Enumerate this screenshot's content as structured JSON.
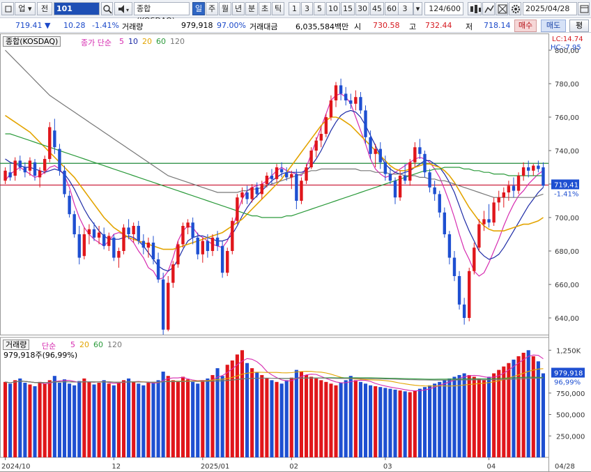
{
  "toolbar": {
    "market": "업",
    "period_label": "전",
    "code": "101",
    "name": "종합(KOSDAQ)",
    "periods": [
      "일",
      "주",
      "월",
      "년",
      "분",
      "초",
      "틱"
    ],
    "selected_period": "일",
    "intervals": [
      "1",
      "3",
      "5",
      "10",
      "15",
      "30",
      "45",
      "60"
    ],
    "custom_interval": "3",
    "count": "124",
    "count_max": "/600",
    "date": "2025/04/28"
  },
  "info": {
    "price": "719.41",
    "change_arrow": "▼",
    "change": "10.28",
    "change_pct": "-1.41%",
    "volume_label": "거래량",
    "volume": "979,918",
    "volume_ratio": "97.00%",
    "amount_label": "거래대금",
    "amount": "6,035,584백만",
    "open_label": "시",
    "open": "730.58",
    "high_label": "고",
    "high": "732.44",
    "low_label": "저",
    "low": "718.14",
    "buy_label": "매수",
    "sell_label": "매도",
    "eval_label": "평"
  },
  "price_panel": {
    "legend_name": "종합(KOSDAQ)",
    "legend_ma": "종가 단순",
    "ma_periods": [
      "5",
      "10",
      "20",
      "60",
      "120"
    ],
    "lc": "LC:14.74",
    "hc": "HC:-7.95",
    "y_ticks": [
      "800,00",
      "780,00",
      "760,00",
      "740,00",
      "720,00",
      "700,00",
      "680,00",
      "660,00",
      "640,00"
    ],
    "current_label": "719,41",
    "current_pct": "-1.41%"
  },
  "volume_panel": {
    "legend_name": "거래량",
    "legend_ma": "단순",
    "ma_periods": [
      "5",
      "20",
      "60",
      "120"
    ],
    "current_text": "979,918주(96,99%)",
    "y_ticks": [
      "1,250K",
      "750,000",
      "500,000",
      "250,000"
    ],
    "current_label": "979,918",
    "current_pct": "96,99%"
  },
  "x_axis": {
    "labels": [
      "2024/10",
      "12",
      "2025/01",
      "02",
      "03",
      "04"
    ],
    "end_label": "04/28"
  },
  "colors": {
    "up": "#e0161b",
    "down": "#1e4fd1",
    "ma5": "#d62bb0",
    "ma10": "#1d2ba6",
    "ma20": "#e3a400",
    "ma60": "#2a9a3a",
    "ma120": "#777777",
    "hline_green": "#1f8a3a",
    "hline_red": "#c8102e"
  },
  "chart_data": {
    "type": "candlestick",
    "x_range": [
      "2024/10",
      "2025/04/28"
    ],
    "ylim": [
      630,
      805
    ],
    "volume_ylim": [
      0,
      1350000
    ],
    "reference_lines": [
      732.4,
      719.4
    ],
    "series": [
      {
        "name": "5",
        "values": [
          722,
          726,
          728,
          730,
          728,
          726,
          724,
          725,
          727,
          730,
          731,
          729,
          725,
          718,
          708,
          700,
          694,
          690,
          687,
          685,
          683,
          686,
          690,
          691,
          690,
          688,
          685,
          680,
          676,
          670,
          668,
          663,
          664,
          668,
          676,
          686,
          692,
          695,
          694,
          690,
          688,
          686,
          684,
          683,
          682,
          686,
          693,
          703,
          711,
          716,
          718,
          719,
          720,
          722,
          725,
          728,
          730,
          728,
          727,
          726,
          725,
          730,
          738,
          746,
          754,
          762,
          770,
          773,
          774,
          772,
          768,
          760,
          752,
          744,
          735,
          729,
          726,
          724,
          725,
          727,
          729,
          731,
          733,
          735,
          736,
          735,
          733,
          729,
          724,
          717,
          709,
          700,
          690,
          681,
          675,
          668,
          665,
          667,
          673,
          680,
          687,
          695,
          702,
          708,
          713,
          716,
          720,
          723,
          726,
          728
        ]
      },
      {
        "name": "10",
        "values": [
          735,
          733,
          732,
          731,
          730,
          730,
          729,
          728,
          727,
          728,
          729,
          728,
          726,
          722,
          717,
          711,
          705,
          700,
          696,
          692,
          689,
          687,
          687,
          687,
          688,
          689,
          688,
          686,
          683,
          679,
          675,
          671,
          669,
          668,
          670,
          675,
          681,
          686,
          688,
          689,
          689,
          688,
          687,
          686,
          686,
          687,
          690,
          695,
          701,
          706,
          710,
          713,
          716,
          719,
          722,
          724,
          726,
          727,
          727,
          727,
          727,
          728,
          731,
          735,
          740,
          746,
          752,
          757,
          761,
          763,
          764,
          763,
          760,
          755,
          749,
          743,
          737,
          732,
          729,
          727,
          726,
          727,
          728,
          730,
          732,
          734,
          734,
          732,
          730,
          726,
          721,
          715,
          707,
          699,
          692,
          686,
          680,
          677,
          675,
          676,
          678,
          682,
          687,
          692,
          697,
          702,
          707,
          711,
          715,
          718
        ]
      },
      {
        "name": "20",
        "values": [
          761,
          759,
          757,
          755,
          753,
          751,
          748,
          745,
          742,
          739,
          736,
          733,
          730,
          727,
          724,
          720,
          716,
          712,
          708,
          704,
          700,
          697,
          694,
          692,
          690,
          688,
          687,
          686,
          685,
          684,
          683,
          682,
          681,
          681,
          681,
          682,
          683,
          684,
          685,
          686,
          687,
          688,
          689,
          690,
          691,
          693,
          695,
          697,
          699,
          702,
          705,
          708,
          711,
          714,
          717,
          720,
          723,
          727,
          731,
          735,
          739,
          743,
          747,
          751,
          755,
          758,
          760,
          760,
          759,
          757,
          755,
          752,
          749,
          746,
          743,
          740,
          737,
          734,
          731,
          729,
          728,
          728,
          729,
          730,
          731,
          732,
          732,
          731,
          730,
          728,
          725,
          721,
          716,
          711,
          706,
          702,
          698,
          695,
          693,
          692,
          692,
          692,
          693,
          694,
          695,
          696,
          696,
          697,
          698,
          700
        ]
      },
      {
        "name": "60",
        "values": [
          750,
          750,
          749,
          748,
          747,
          746,
          745,
          744,
          743,
          742,
          741,
          740,
          739,
          738,
          737,
          736,
          735,
          734,
          733,
          732,
          731,
          730,
          729,
          728,
          727,
          726,
          725,
          724,
          723,
          722,
          721,
          720,
          719,
          718,
          717,
          716,
          715,
          714,
          713,
          712,
          711,
          710,
          709,
          708,
          707,
          706,
          705,
          704,
          703,
          702,
          701,
          701,
          700,
          700,
          700,
          700,
          700,
          701,
          701,
          702,
          703,
          704,
          705,
          706,
          707,
          708,
          709,
          710,
          711,
          712,
          713,
          714,
          715,
          716,
          717,
          718,
          719,
          720,
          721,
          722,
          723,
          724,
          725,
          726,
          727,
          728,
          728,
          729,
          729,
          730,
          730,
          730,
          730,
          729,
          729,
          728,
          728,
          727,
          727,
          726,
          726,
          726,
          725,
          725,
          725,
          725,
          725,
          725,
          725,
          725
        ]
      },
      {
        "name": "120",
        "values": [
          800,
          797,
          794,
          791,
          788,
          785,
          782,
          779,
          776,
          773,
          771,
          769,
          767,
          765,
          763,
          761,
          759,
          757,
          755,
          753,
          751,
          749,
          747,
          745,
          743,
          741,
          739,
          737,
          735,
          733,
          731,
          729,
          727,
          725,
          724,
          723,
          722,
          721,
          720,
          719,
          718,
          717,
          716,
          715,
          715,
          715,
          715,
          715,
          716,
          716,
          717,
          717,
          718,
          719,
          720,
          721,
          722,
          723,
          724,
          725,
          726,
          727,
          728,
          728,
          729,
          729,
          729,
          729,
          729,
          729,
          729,
          729,
          728,
          728,
          728,
          727,
          727,
          727,
          726,
          726,
          726,
          725,
          725,
          725,
          724,
          724,
          723,
          723,
          722,
          722,
          721,
          720,
          719,
          718,
          717,
          716,
          715,
          714,
          713,
          712,
          712,
          712,
          712,
          712,
          712,
          712,
          712,
          712,
          713,
          714
        ]
      }
    ],
    "candles": [
      [
        722,
        730,
        720,
        728
      ],
      [
        727,
        732,
        722,
        724
      ],
      [
        725,
        736,
        722,
        734
      ],
      [
        734,
        737,
        728,
        730
      ],
      [
        730,
        733,
        724,
        727
      ],
      [
        728,
        736,
        725,
        734
      ],
      [
        733,
        735,
        722,
        725
      ],
      [
        724,
        730,
        718,
        728
      ],
      [
        728,
        737,
        726,
        735
      ],
      [
        735,
        757,
        733,
        754
      ],
      [
        752,
        759,
        738,
        742
      ],
      [
        741,
        744,
        725,
        728
      ],
      [
        728,
        731,
        712,
        714
      ],
      [
        713,
        716,
        700,
        702
      ],
      [
        702,
        704,
        688,
        690
      ],
      [
        690,
        695,
        672,
        676
      ],
      [
        677,
        694,
        675,
        690
      ],
      [
        690,
        696,
        684,
        693
      ],
      [
        693,
        697,
        686,
        688
      ],
      [
        688,
        695,
        684,
        691
      ],
      [
        690,
        694,
        681,
        683
      ],
      [
        683,
        691,
        680,
        689
      ],
      [
        688,
        690,
        674,
        676
      ],
      [
        676,
        682,
        670,
        680
      ],
      [
        680,
        696,
        678,
        694
      ],
      [
        694,
        699,
        687,
        690
      ],
      [
        690,
        697,
        685,
        695
      ],
      [
        695,
        698,
        684,
        686
      ],
      [
        686,
        690,
        678,
        682
      ],
      [
        682,
        688,
        676,
        685
      ],
      [
        685,
        689,
        672,
        675
      ],
      [
        675,
        679,
        661,
        663
      ],
      [
        663,
        667,
        630,
        633
      ],
      [
        633,
        665,
        632,
        661
      ],
      [
        661,
        674,
        658,
        672
      ],
      [
        672,
        686,
        670,
        684
      ],
      [
        684,
        697,
        682,
        695
      ],
      [
        694,
        699,
        690,
        697
      ],
      [
        697,
        700,
        684,
        688
      ],
      [
        688,
        691,
        675,
        678
      ],
      [
        678,
        688,
        673,
        686
      ],
      [
        686,
        690,
        676,
        680
      ],
      [
        680,
        690,
        677,
        688
      ],
      [
        688,
        692,
        680,
        683
      ],
      [
        683,
        686,
        664,
        667
      ],
      [
        667,
        682,
        665,
        680
      ],
      [
        680,
        700,
        678,
        698
      ],
      [
        698,
        714,
        696,
        712
      ],
      [
        712,
        718,
        708,
        715
      ],
      [
        715,
        719,
        708,
        711
      ],
      [
        711,
        720,
        709,
        718
      ],
      [
        718,
        721,
        712,
        714
      ],
      [
        714,
        722,
        711,
        720
      ],
      [
        720,
        727,
        718,
        725
      ],
      [
        725,
        729,
        720,
        723
      ],
      [
        723,
        732,
        721,
        730
      ],
      [
        729,
        733,
        724,
        727
      ],
      [
        727,
        730,
        722,
        724
      ],
      [
        724,
        728,
        717,
        726
      ],
      [
        726,
        729,
        705,
        710
      ],
      [
        710,
        724,
        708,
        722
      ],
      [
        722,
        732,
        720,
        730
      ],
      [
        730,
        742,
        729,
        740
      ],
      [
        740,
        748,
        736,
        746
      ],
      [
        746,
        754,
        742,
        750
      ],
      [
        750,
        762,
        748,
        760
      ],
      [
        760,
        773,
        758,
        770
      ],
      [
        770,
        781,
        766,
        779
      ],
      [
        779,
        783,
        770,
        774
      ],
      [
        774,
        778,
        767,
        770
      ],
      [
        770,
        774,
        765,
        768
      ],
      [
        768,
        776,
        764,
        772
      ],
      [
        772,
        775,
        762,
        764
      ],
      [
        764,
        767,
        744,
        748
      ],
      [
        748,
        752,
        735,
        738
      ],
      [
        738,
        744,
        730,
        741
      ],
      [
        741,
        745,
        729,
        733
      ],
      [
        733,
        737,
        722,
        726
      ],
      [
        726,
        730,
        720,
        722
      ],
      [
        722,
        724,
        708,
        712
      ],
      [
        712,
        728,
        710,
        725
      ],
      [
        725,
        732,
        720,
        722
      ],
      [
        722,
        735,
        719,
        733
      ],
      [
        733,
        745,
        730,
        742
      ],
      [
        742,
        747,
        735,
        738
      ],
      [
        738,
        740,
        724,
        727
      ],
      [
        727,
        729,
        715,
        718
      ],
      [
        718,
        722,
        710,
        714
      ],
      [
        714,
        716,
        700,
        703
      ],
      [
        703,
        706,
        688,
        690
      ],
      [
        690,
        692,
        672,
        676
      ],
      [
        676,
        680,
        662,
        665
      ],
      [
        665,
        668,
        645,
        648
      ],
      [
        648,
        652,
        636,
        640
      ],
      [
        640,
        670,
        638,
        668
      ],
      [
        668,
        685,
        666,
        682
      ],
      [
        682,
        699,
        680,
        696
      ],
      [
        696,
        704,
        692,
        699
      ],
      [
        699,
        708,
        694,
        697
      ],
      [
        697,
        712,
        695,
        709
      ],
      [
        709,
        716,
        704,
        712
      ],
      [
        712,
        718,
        706,
        715
      ],
      [
        715,
        722,
        710,
        719
      ],
      [
        719,
        724,
        712,
        716
      ],
      [
        716,
        727,
        714,
        725
      ],
      [
        725,
        733,
        722,
        730
      ],
      [
        730,
        734,
        724,
        728
      ],
      [
        728,
        732,
        725,
        731
      ],
      [
        731,
        734,
        727,
        729
      ],
      [
        730,
        733,
        718,
        719
      ]
    ],
    "volume": [
      880,
      860,
      900,
      920,
      870,
      850,
      830,
      880,
      860,
      900,
      950,
      870,
      910,
      860,
      840,
      890,
      920,
      880,
      850,
      870,
      900,
      860,
      840,
      870,
      900,
      920,
      880,
      860,
      840,
      870,
      880,
      900,
      1000,
      950,
      900,
      880,
      940,
      910,
      880,
      860,
      900,
      920,
      960,
      1040,
      950,
      1080,
      1130,
      1200,
      1250,
      1100,
      1040,
      990,
      960,
      920,
      900,
      880,
      860,
      900,
      930,
      1020,
      1000,
      960,
      940,
      920,
      900,
      880,
      860,
      840,
      870,
      900,
      950,
      900,
      880,
      860,
      840,
      830,
      820,
      810,
      800,
      790,
      780,
      770,
      760,
      780,
      800,
      820,
      840,
      860,
      880,
      900,
      920,
      940,
      960,
      980,
      960,
      940,
      920,
      900,
      940,
      980,
      1020,
      1060,
      1100,
      1140,
      1180,
      1220,
      1250,
      1180,
      1120,
      980
    ]
  }
}
